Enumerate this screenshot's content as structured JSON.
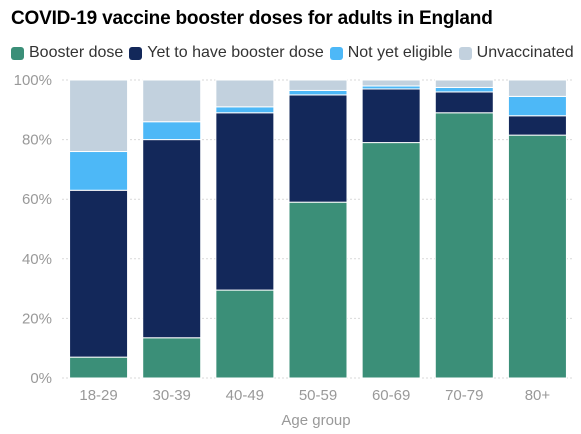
{
  "chart_data": {
    "type": "bar",
    "stacked": true,
    "title": "COVID-19 vaccine booster doses for adults in England",
    "xlabel": "Age group",
    "ylabel": "",
    "ylim": [
      0,
      100
    ],
    "y_ticks": [
      "0%",
      "20%",
      "40%",
      "60%",
      "80%",
      "100%"
    ],
    "y_tick_values": [
      0,
      20,
      40,
      60,
      80,
      100
    ],
    "grid": true,
    "legend_position": "top",
    "categories": [
      "18-29",
      "30-39",
      "40-49",
      "50-59",
      "60-69",
      "70-79",
      "80+"
    ],
    "series": [
      {
        "name": "Booster dose",
        "color": "#3b8f78",
        "values": [
          7,
          13.5,
          29.5,
          59,
          79,
          89,
          81.5
        ]
      },
      {
        "name": "Yet to have booster dose",
        "color": "#13285a",
        "values": [
          56,
          66.5,
          59.5,
          36,
          18,
          7,
          6.5
        ]
      },
      {
        "name": "Not yet eligible",
        "color": "#4db8f7",
        "values": [
          13,
          6,
          2,
          1.5,
          1,
          1.5,
          6.5
        ]
      },
      {
        "name": "Unvaccinated",
        "color": "#c2d1de",
        "values": [
          24,
          14,
          9,
          3.5,
          2,
          2.5,
          5.5
        ]
      }
    ]
  }
}
